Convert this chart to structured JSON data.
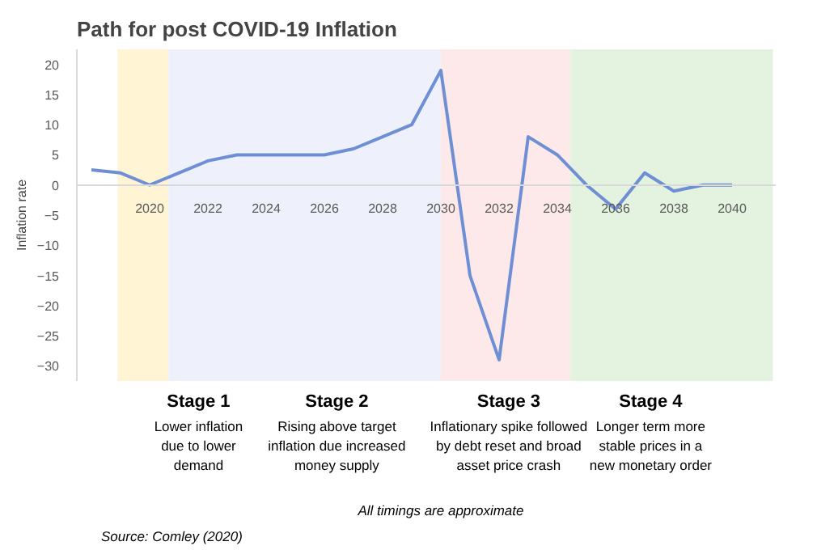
{
  "chart_data": {
    "type": "line",
    "title": "Path for post COVID-19 Inflation",
    "ylabel": "Inflation rate",
    "x": [
      2018,
      2019,
      2020,
      2021,
      2022,
      2023,
      2024,
      2025,
      2026,
      2027,
      2028,
      2029,
      2030,
      2031,
      2032,
      2033,
      2034,
      2035,
      2036,
      2037,
      2038,
      2039,
      2040
    ],
    "series": [
      {
        "color": "#6f8fd4",
        "values": [
          2.5,
          2,
          0,
          2,
          4,
          5,
          5,
          5,
          5,
          6,
          8,
          10,
          19,
          -15,
          -29,
          8,
          5,
          0,
          -4,
          2,
          -1,
          0,
          0
        ]
      }
    ],
    "xlim": [
      2017.5,
      2041.5
    ],
    "xticks": [
      2020,
      2022,
      2024,
      2026,
      2028,
      2030,
      2032,
      2034,
      2036,
      2038,
      2040
    ],
    "ylim": [
      -32.5,
      22.5
    ],
    "yticks": [
      -30,
      -25,
      -20,
      -15,
      -10,
      -5,
      0,
      5,
      10,
      15,
      20
    ],
    "bands": [
      {
        "axis": "x",
        "from": 2018.9,
        "to": 2020.65,
        "color": "#fff4d4",
        "label": "Stage 1\nLower inflation\ndue to lower\ndemand"
      },
      {
        "axis": "x",
        "from": 2020.65,
        "to": 2030,
        "color": "#eef1fb",
        "label": "Stage 2\nRising above target\ninflation due increased\nmoney supply"
      },
      {
        "axis": "x",
        "from": 2030,
        "to": 2034.45,
        "color": "#fde9ea",
        "label": "Stage 3\nInflationary spike followed\nby debt reset and broad\nasset price crash"
      },
      {
        "axis": "x",
        "from": 2034.45,
        "to": 2041.4,
        "color": "#e3f3df",
        "label": "Stage 4\nLonger term more\nstable prices in a\nnew monetary order"
      }
    ],
    "annotations": [
      "All timings are approximate",
      "Source: Comley (2020)"
    ],
    "grid": false,
    "marker": "none",
    "line_style": "solid"
  }
}
